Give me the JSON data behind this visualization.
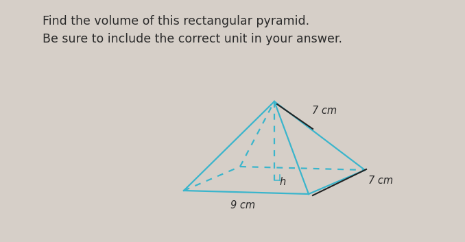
{
  "title_line1": "Find the volume of this rectangular pyramid.",
  "title_line2": "Be sure to include the correct unit in your answer.",
  "bg_color": "#d6cfc8",
  "pyramid_color": "#3ab5cc",
  "dashed_color": "#3ab5cc",
  "label_7cm_top": "7 cm",
  "label_7cm_side": "7 cm",
  "label_9cm": "9 cm",
  "label_h": "h",
  "text_color": "#2a2a2a",
  "label_color": "#2a2a2a",
  "font_size_title": 12.5,
  "font_size_labels": 10.5,
  "lw": 1.6
}
